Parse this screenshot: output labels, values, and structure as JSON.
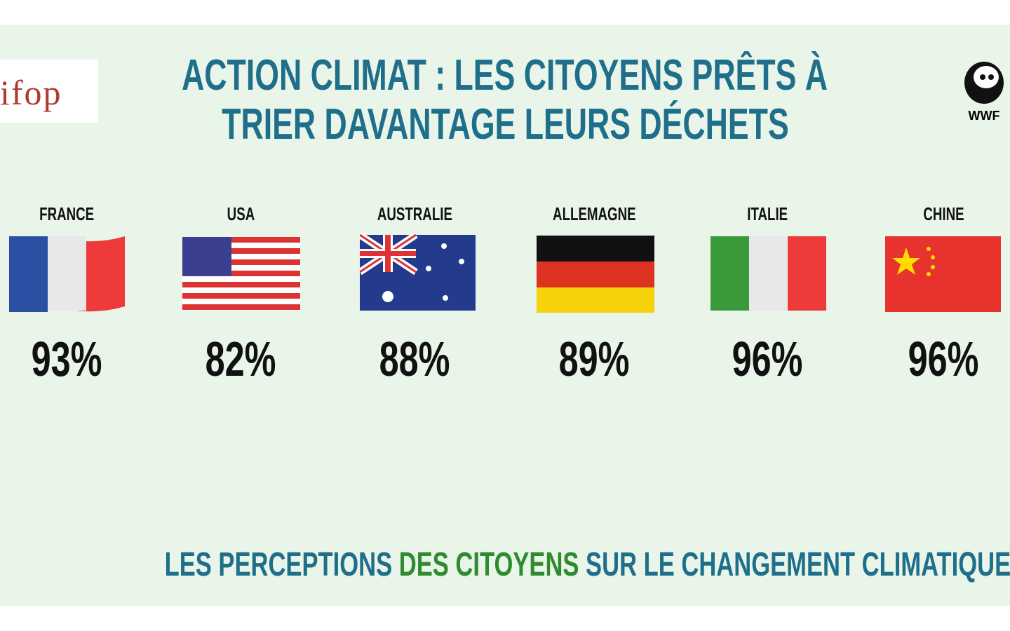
{
  "header": {
    "logo_left": "ifop",
    "title_line1": "ACTION CLIMAT : LES CITOYENS PRÊTS À",
    "title_line2": "TRIER DAVANTAGE LEURS DÉCHETS",
    "logo_right": "WWF"
  },
  "countries": [
    {
      "name": "FRANCE",
      "value": "93%"
    },
    {
      "name": "USA",
      "value": "82%"
    },
    {
      "name": "AUSTRALIE",
      "value": "88%"
    },
    {
      "name": "ALLEMAGNE",
      "value": "89%"
    },
    {
      "name": "ITALIE",
      "value": "96%"
    },
    {
      "name": "CHINE",
      "value": "96%"
    }
  ],
  "footer": {
    "part1": "LES PERCEPTIONS",
    "part2": "DES CITOYENS",
    "part3": "SUR LE CHANGEMENT CLIMATIQUE"
  }
}
